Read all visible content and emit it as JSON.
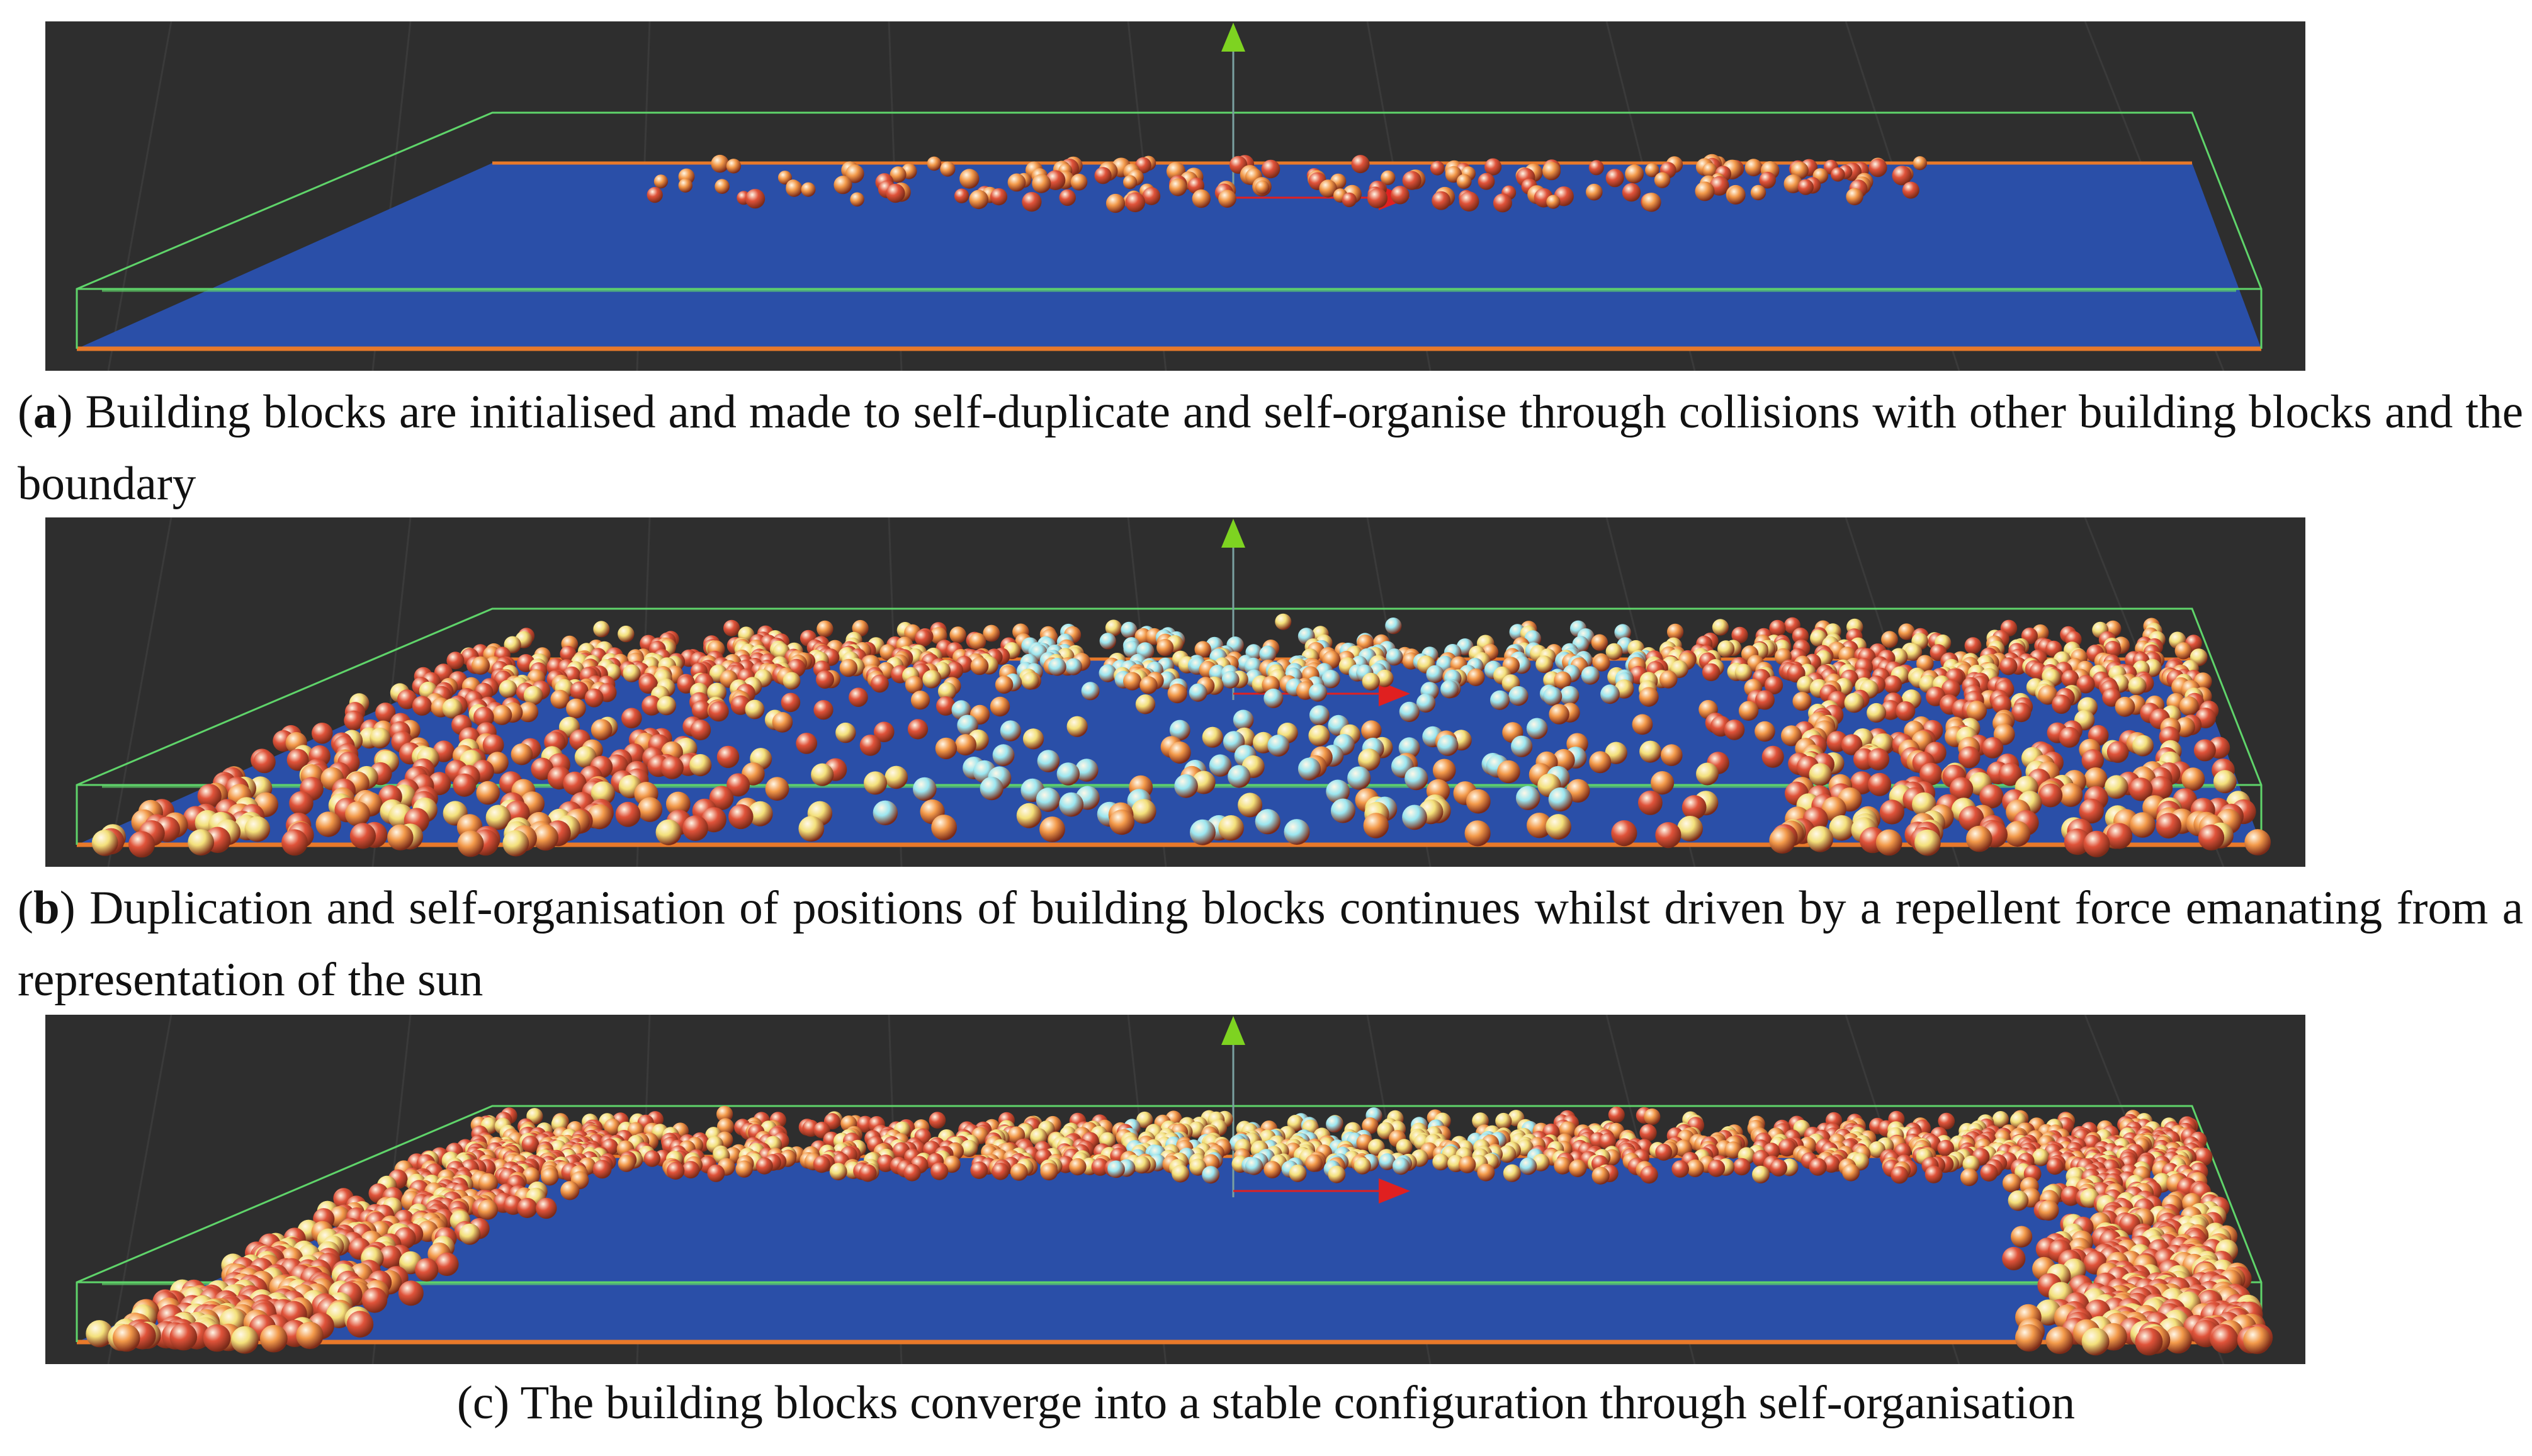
{
  "figure": {
    "panels": [
      {
        "id": "a",
        "caption_label": "a",
        "caption_text": " Building blocks are initialised and made to self-duplicate and self-organise through collisions with other building blocks and the boundary",
        "stage": "sparse"
      },
      {
        "id": "b",
        "caption_label": "b",
        "caption_text": " Duplication and self-organisation of positions of building blocks continues whilst driven by a repellent force emanating from a representation of the sun",
        "stage": "growing"
      },
      {
        "id": "c",
        "caption_label": "c",
        "caption_text": " The building blocks converge into a stable configuration through self-organisation",
        "stage": "converged"
      }
    ],
    "colors": {
      "viewport_bg": "#2e2e2e",
      "floor": "#2a4fa8",
      "boundary_green": "#5fd46a",
      "floor_edge_orange": "#e8792a",
      "sphere_red": "#e0533a",
      "sphere_orange": "#f39a4a",
      "sphere_yellow": "#f3e07a",
      "sphere_cyan": "#9be6f0",
      "gizmo_y": "#7ed321",
      "gizmo_x": "#e02020"
    },
    "icons": {
      "y_axis": "up-arrow-icon",
      "x_axis": "right-arrow-icon"
    }
  }
}
